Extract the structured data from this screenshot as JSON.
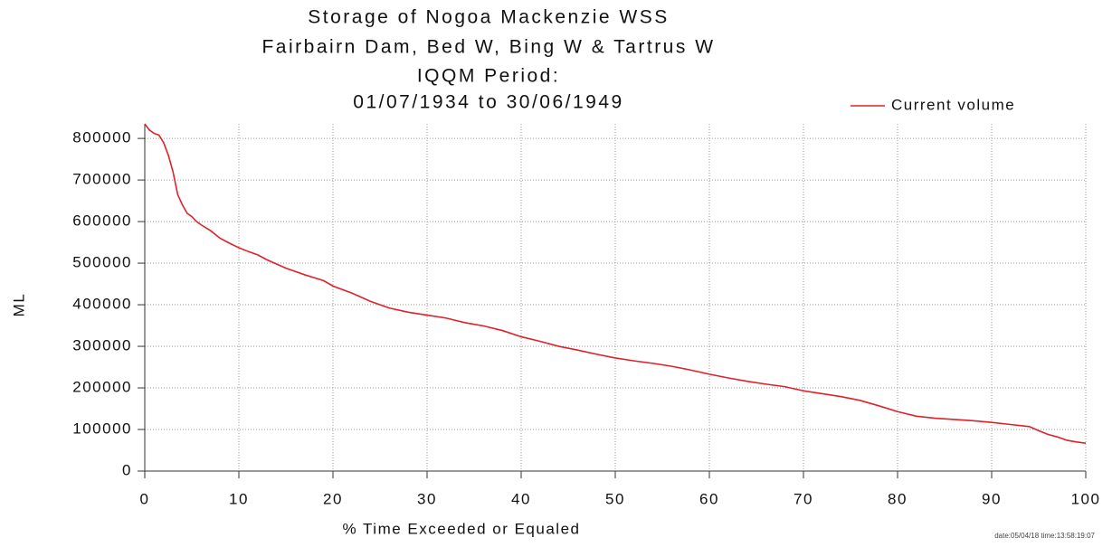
{
  "chart_data": {
    "type": "line",
    "title": [
      "Storage of Nogoa Mackenzie WSS",
      "Fairbairn Dam, Bed W, Bing W & Tartrus W",
      "IQQM Period:",
      "01/07/1934 to 30/06/1949"
    ],
    "x_label": "% Time Exceeded or Equaled",
    "y_label": "ML",
    "footnote": "date:05/04/18 time:13:58:19:07",
    "legend": "top-right",
    "grid": true,
    "xlim": [
      0,
      100
    ],
    "ylim": [
      0,
      835000
    ],
    "xticks": [
      0,
      10,
      20,
      30,
      40,
      50,
      60,
      70,
      80,
      90,
      100
    ],
    "yticks": [
      0,
      100000,
      200000,
      300000,
      400000,
      500000,
      600000,
      700000,
      800000
    ],
    "x": [
      0,
      0.5,
      1,
      1.5,
      2,
      2.5,
      3,
      3.5,
      4,
      4.5,
      5,
      5.5,
      6,
      7,
      8,
      9,
      10,
      11,
      12,
      13,
      14,
      15,
      16,
      17,
      18,
      19,
      20,
      22,
      24,
      26,
      28,
      30,
      32,
      34,
      36,
      38,
      40,
      42,
      44,
      46,
      48,
      50,
      52,
      54,
      56,
      58,
      60,
      62,
      64,
      66,
      68,
      70,
      72,
      74,
      76,
      78,
      80,
      82,
      84,
      86,
      88,
      90,
      92,
      94,
      95,
      96,
      97,
      98,
      99,
      100
    ],
    "series": [
      {
        "name": "Current volume",
        "color": "#e0202a",
        "values": [
          835000,
          820000,
          812000,
          808000,
          790000,
          760000,
          720000,
          665000,
          640000,
          620000,
          612000,
          600000,
          592000,
          578000,
          560000,
          548000,
          537000,
          528000,
          520000,
          508000,
          498000,
          488000,
          480000,
          472000,
          465000,
          458000,
          445000,
          428000,
          408000,
          392000,
          382000,
          375000,
          368000,
          357000,
          349000,
          338000,
          323000,
          312000,
          300000,
          291000,
          281000,
          272000,
          265000,
          259000,
          252000,
          243000,
          233000,
          224000,
          216000,
          209000,
          203000,
          193000,
          186000,
          179000,
          170000,
          157000,
          143000,
          132000,
          127000,
          124000,
          121000,
          117000,
          112000,
          107000,
          97000,
          88000,
          82000,
          74000,
          70000,
          67000
        ]
      }
    ]
  }
}
